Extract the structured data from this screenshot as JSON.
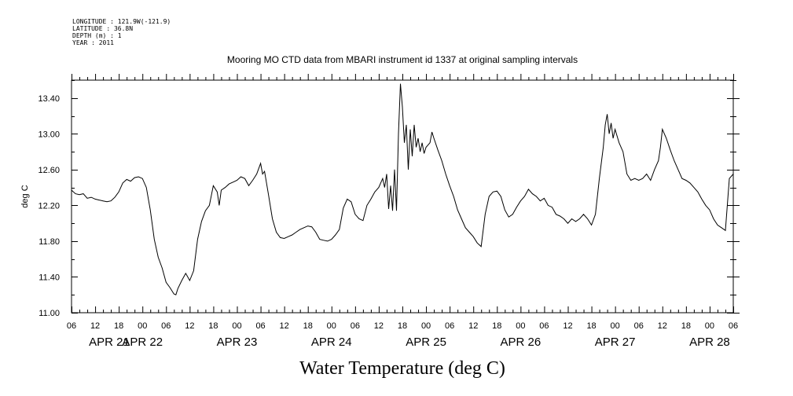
{
  "header": {
    "longitude": "LONGITUDE : 121.9W(-121.9)",
    "latitude": "LATITUDE : 36.8N",
    "depth": "DEPTH (m) : 1",
    "year": "YEAR : 2011"
  },
  "chart_data": {
    "type": "line",
    "title": "Mooring MO CTD data from MBARI instrument id 1337 at original sampling intervals",
    "xlabel": "Water Temperature (deg C)",
    "ylabel": "deg C",
    "x_units": "hours since 2011-04-21 00:00",
    "xlim": [
      6,
      174
    ],
    "ylim": [
      11.0,
      13.6
    ],
    "grid": false,
    "y_ticks": [
      "11.00",
      "11.40",
      "11.80",
      "12.20",
      "12.60",
      "13.00",
      "13.40"
    ],
    "x_tick_labels": [
      "06",
      "12",
      "18",
      "00",
      "06",
      "12",
      "18",
      "00",
      "06",
      "12",
      "18",
      "00",
      "06",
      "12",
      "18",
      "00",
      "06",
      "12",
      "18",
      "00",
      "06",
      "12",
      "18",
      "00",
      "06",
      "12",
      "18",
      "00",
      "06"
    ],
    "day_labels": [
      "APR 21",
      "APR 22",
      "APR 23",
      "APR 24",
      "APR 25",
      "APR 26",
      "APR 27",
      "APR 28"
    ],
    "series": [
      {
        "points": [
          [
            6,
            12.37
          ],
          [
            7,
            12.33
          ],
          [
            8,
            12.32
          ],
          [
            9,
            12.33
          ],
          [
            10,
            12.28
          ],
          [
            11,
            12.29
          ],
          [
            12,
            12.27
          ],
          [
            13,
            12.26
          ],
          [
            14,
            12.25
          ],
          [
            15,
            12.24
          ],
          [
            16,
            12.25
          ],
          [
            17,
            12.29
          ],
          [
            18,
            12.35
          ],
          [
            19,
            12.45
          ],
          [
            20,
            12.49
          ],
          [
            21,
            12.47
          ],
          [
            22,
            12.51
          ],
          [
            23,
            12.52
          ],
          [
            24,
            12.5
          ],
          [
            25,
            12.4
          ],
          [
            26,
            12.15
          ],
          [
            27,
            11.82
          ],
          [
            28,
            11.62
          ],
          [
            29,
            11.5
          ],
          [
            30,
            11.34
          ],
          [
            31,
            11.28
          ],
          [
            32,
            11.21
          ],
          [
            32.5,
            11.2
          ],
          [
            33,
            11.27
          ],
          [
            34,
            11.36
          ],
          [
            35,
            11.44
          ],
          [
            36,
            11.36
          ],
          [
            37,
            11.47
          ],
          [
            38,
            11.82
          ],
          [
            39,
            12.02
          ],
          [
            40,
            12.14
          ],
          [
            41,
            12.2
          ],
          [
            42,
            12.42
          ],
          [
            43,
            12.35
          ],
          [
            43.5,
            12.2
          ],
          [
            44,
            12.37
          ],
          [
            45,
            12.4
          ],
          [
            46,
            12.44
          ],
          [
            47,
            12.46
          ],
          [
            48,
            12.48
          ],
          [
            49,
            12.52
          ],
          [
            50,
            12.5
          ],
          [
            51,
            12.42
          ],
          [
            52,
            12.48
          ],
          [
            53,
            12.55
          ],
          [
            54,
            12.67
          ],
          [
            54.5,
            12.55
          ],
          [
            55,
            12.58
          ],
          [
            56,
            12.32
          ],
          [
            57,
            12.05
          ],
          [
            58,
            11.9
          ],
          [
            59,
            11.84
          ],
          [
            60,
            11.83
          ],
          [
            61,
            11.85
          ],
          [
            62,
            11.87
          ],
          [
            63,
            11.9
          ],
          [
            64,
            11.93
          ],
          [
            65,
            11.95
          ],
          [
            66,
            11.97
          ],
          [
            67,
            11.96
          ],
          [
            68,
            11.9
          ],
          [
            69,
            11.82
          ],
          [
            70,
            11.81
          ],
          [
            71,
            11.8
          ],
          [
            72,
            11.82
          ],
          [
            73,
            11.87
          ],
          [
            74,
            11.93
          ],
          [
            75,
            12.17
          ],
          [
            76,
            12.27
          ],
          [
            77,
            12.24
          ],
          [
            78,
            12.1
          ],
          [
            79,
            12.05
          ],
          [
            80,
            12.03
          ],
          [
            81,
            12.2
          ],
          [
            82,
            12.27
          ],
          [
            83,
            12.35
          ],
          [
            84,
            12.4
          ],
          [
            85,
            12.5
          ],
          [
            85.5,
            12.4
          ],
          [
            86,
            12.55
          ],
          [
            86.5,
            12.16
          ],
          [
            87,
            12.42
          ],
          [
            87.5,
            12.14
          ],
          [
            88,
            12.6
          ],
          [
            88.5,
            12.14
          ],
          [
            89,
            13.0
          ],
          [
            89.5,
            13.56
          ],
          [
            90,
            13.3
          ],
          [
            90.5,
            12.9
          ],
          [
            91,
            13.1
          ],
          [
            91.5,
            12.6
          ],
          [
            92,
            13.05
          ],
          [
            92.5,
            12.75
          ],
          [
            93,
            13.1
          ],
          [
            93.5,
            12.85
          ],
          [
            94,
            12.95
          ],
          [
            94.5,
            12.8
          ],
          [
            95,
            12.9
          ],
          [
            95.5,
            12.78
          ],
          [
            96,
            12.85
          ],
          [
            97,
            12.9
          ],
          [
            97.5,
            13.02
          ],
          [
            98,
            12.95
          ],
          [
            99,
            12.82
          ],
          [
            100,
            12.7
          ],
          [
            101,
            12.55
          ],
          [
            102,
            12.42
          ],
          [
            103,
            12.3
          ],
          [
            104,
            12.15
          ],
          [
            105,
            12.05
          ],
          [
            106,
            11.95
          ],
          [
            107,
            11.9
          ],
          [
            108,
            11.85
          ],
          [
            109,
            11.78
          ],
          [
            110,
            11.74
          ],
          [
            111,
            12.1
          ],
          [
            112,
            12.3
          ],
          [
            113,
            12.35
          ],
          [
            114,
            12.36
          ],
          [
            115,
            12.3
          ],
          [
            116,
            12.15
          ],
          [
            117,
            12.07
          ],
          [
            118,
            12.1
          ],
          [
            119,
            12.18
          ],
          [
            120,
            12.25
          ],
          [
            121,
            12.3
          ],
          [
            122,
            12.38
          ],
          [
            123,
            12.33
          ],
          [
            124,
            12.3
          ],
          [
            125,
            12.25
          ],
          [
            126,
            12.28
          ],
          [
            127,
            12.2
          ],
          [
            128,
            12.18
          ],
          [
            129,
            12.1
          ],
          [
            130,
            12.08
          ],
          [
            131,
            12.05
          ],
          [
            132,
            12.0
          ],
          [
            133,
            12.05
          ],
          [
            134,
            12.02
          ],
          [
            135,
            12.05
          ],
          [
            136,
            12.1
          ],
          [
            137,
            12.05
          ],
          [
            138,
            11.98
          ],
          [
            139,
            12.1
          ],
          [
            140,
            12.5
          ],
          [
            141,
            12.85
          ],
          [
            141.5,
            13.1
          ],
          [
            142,
            13.22
          ],
          [
            142.5,
            13.0
          ],
          [
            143,
            13.12
          ],
          [
            143.5,
            12.95
          ],
          [
            144,
            13.05
          ],
          [
            145,
            12.9
          ],
          [
            146,
            12.8
          ],
          [
            147,
            12.55
          ],
          [
            148,
            12.48
          ],
          [
            149,
            12.5
          ],
          [
            150,
            12.48
          ],
          [
            151,
            12.5
          ],
          [
            152,
            12.55
          ],
          [
            153,
            12.48
          ],
          [
            154,
            12.6
          ],
          [
            155,
            12.7
          ],
          [
            155.5,
            12.85
          ],
          [
            156,
            13.05
          ],
          [
            157,
            12.95
          ],
          [
            158,
            12.82
          ],
          [
            159,
            12.7
          ],
          [
            160,
            12.6
          ],
          [
            161,
            12.5
          ],
          [
            162,
            12.48
          ],
          [
            163,
            12.45
          ],
          [
            164,
            12.4
          ],
          [
            165,
            12.35
          ],
          [
            166,
            12.27
          ],
          [
            167,
            12.2
          ],
          [
            168,
            12.15
          ],
          [
            169,
            12.05
          ],
          [
            170,
            11.98
          ],
          [
            171,
            11.95
          ],
          [
            172,
            11.92
          ],
          [
            173,
            12.5
          ],
          [
            174,
            12.55
          ]
        ]
      }
    ]
  }
}
